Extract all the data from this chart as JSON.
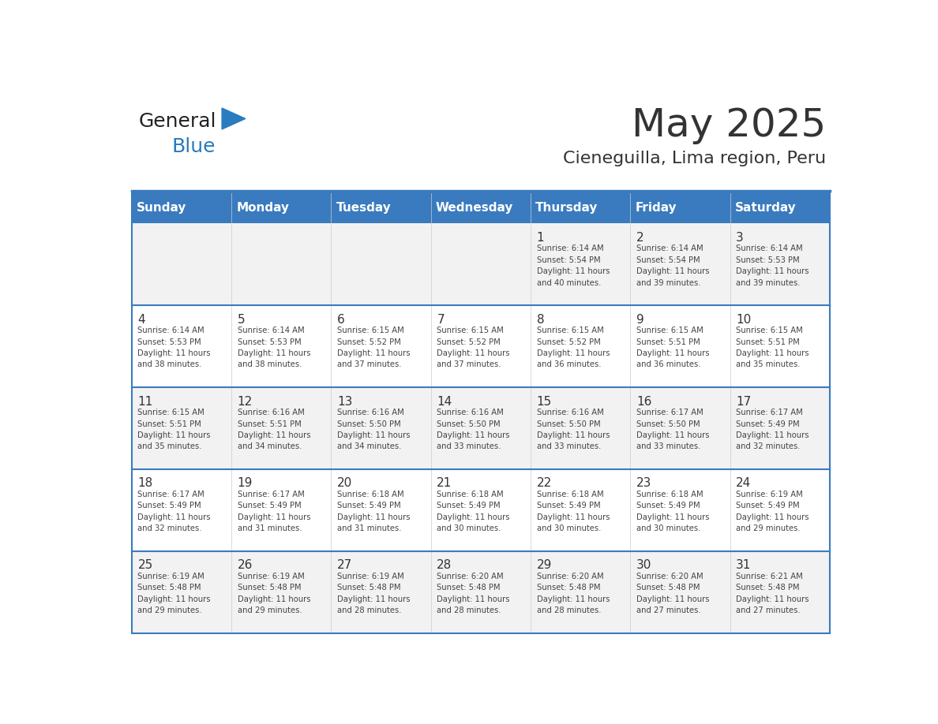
{
  "title": "May 2025",
  "subtitle": "Cieneguilla, Lima region, Peru",
  "days_of_week": [
    "Sunday",
    "Monday",
    "Tuesday",
    "Wednesday",
    "Thursday",
    "Friday",
    "Saturday"
  ],
  "header_bg": "#3a7bbf",
  "header_text": "#ffffff",
  "row_bg_odd": "#f2f2f2",
  "row_bg_even": "#ffffff",
  "divider_color": "#3a7bbf",
  "text_color": "#333333",
  "date_color": "#333333",
  "cell_text_color": "#444444",
  "logo_general_color": "#222222",
  "logo_blue_color": "#2a7bbf",
  "weeks": [
    {
      "days": [
        {
          "day": null,
          "info": null
        },
        {
          "day": null,
          "info": null
        },
        {
          "day": null,
          "info": null
        },
        {
          "day": null,
          "info": null
        },
        {
          "day": 1,
          "info": "Sunrise: 6:14 AM\nSunset: 5:54 PM\nDaylight: 11 hours\nand 40 minutes."
        },
        {
          "day": 2,
          "info": "Sunrise: 6:14 AM\nSunset: 5:54 PM\nDaylight: 11 hours\nand 39 minutes."
        },
        {
          "day": 3,
          "info": "Sunrise: 6:14 AM\nSunset: 5:53 PM\nDaylight: 11 hours\nand 39 minutes."
        }
      ]
    },
    {
      "days": [
        {
          "day": 4,
          "info": "Sunrise: 6:14 AM\nSunset: 5:53 PM\nDaylight: 11 hours\nand 38 minutes."
        },
        {
          "day": 5,
          "info": "Sunrise: 6:14 AM\nSunset: 5:53 PM\nDaylight: 11 hours\nand 38 minutes."
        },
        {
          "day": 6,
          "info": "Sunrise: 6:15 AM\nSunset: 5:52 PM\nDaylight: 11 hours\nand 37 minutes."
        },
        {
          "day": 7,
          "info": "Sunrise: 6:15 AM\nSunset: 5:52 PM\nDaylight: 11 hours\nand 37 minutes."
        },
        {
          "day": 8,
          "info": "Sunrise: 6:15 AM\nSunset: 5:52 PM\nDaylight: 11 hours\nand 36 minutes."
        },
        {
          "day": 9,
          "info": "Sunrise: 6:15 AM\nSunset: 5:51 PM\nDaylight: 11 hours\nand 36 minutes."
        },
        {
          "day": 10,
          "info": "Sunrise: 6:15 AM\nSunset: 5:51 PM\nDaylight: 11 hours\nand 35 minutes."
        }
      ]
    },
    {
      "days": [
        {
          "day": 11,
          "info": "Sunrise: 6:15 AM\nSunset: 5:51 PM\nDaylight: 11 hours\nand 35 minutes."
        },
        {
          "day": 12,
          "info": "Sunrise: 6:16 AM\nSunset: 5:51 PM\nDaylight: 11 hours\nand 34 minutes."
        },
        {
          "day": 13,
          "info": "Sunrise: 6:16 AM\nSunset: 5:50 PM\nDaylight: 11 hours\nand 34 minutes."
        },
        {
          "day": 14,
          "info": "Sunrise: 6:16 AM\nSunset: 5:50 PM\nDaylight: 11 hours\nand 33 minutes."
        },
        {
          "day": 15,
          "info": "Sunrise: 6:16 AM\nSunset: 5:50 PM\nDaylight: 11 hours\nand 33 minutes."
        },
        {
          "day": 16,
          "info": "Sunrise: 6:17 AM\nSunset: 5:50 PM\nDaylight: 11 hours\nand 33 minutes."
        },
        {
          "day": 17,
          "info": "Sunrise: 6:17 AM\nSunset: 5:49 PM\nDaylight: 11 hours\nand 32 minutes."
        }
      ]
    },
    {
      "days": [
        {
          "day": 18,
          "info": "Sunrise: 6:17 AM\nSunset: 5:49 PM\nDaylight: 11 hours\nand 32 minutes."
        },
        {
          "day": 19,
          "info": "Sunrise: 6:17 AM\nSunset: 5:49 PM\nDaylight: 11 hours\nand 31 minutes."
        },
        {
          "day": 20,
          "info": "Sunrise: 6:18 AM\nSunset: 5:49 PM\nDaylight: 11 hours\nand 31 minutes."
        },
        {
          "day": 21,
          "info": "Sunrise: 6:18 AM\nSunset: 5:49 PM\nDaylight: 11 hours\nand 30 minutes."
        },
        {
          "day": 22,
          "info": "Sunrise: 6:18 AM\nSunset: 5:49 PM\nDaylight: 11 hours\nand 30 minutes."
        },
        {
          "day": 23,
          "info": "Sunrise: 6:18 AM\nSunset: 5:49 PM\nDaylight: 11 hours\nand 30 minutes."
        },
        {
          "day": 24,
          "info": "Sunrise: 6:19 AM\nSunset: 5:49 PM\nDaylight: 11 hours\nand 29 minutes."
        }
      ]
    },
    {
      "days": [
        {
          "day": 25,
          "info": "Sunrise: 6:19 AM\nSunset: 5:48 PM\nDaylight: 11 hours\nand 29 minutes."
        },
        {
          "day": 26,
          "info": "Sunrise: 6:19 AM\nSunset: 5:48 PM\nDaylight: 11 hours\nand 29 minutes."
        },
        {
          "day": 27,
          "info": "Sunrise: 6:19 AM\nSunset: 5:48 PM\nDaylight: 11 hours\nand 28 minutes."
        },
        {
          "day": 28,
          "info": "Sunrise: 6:20 AM\nSunset: 5:48 PM\nDaylight: 11 hours\nand 28 minutes."
        },
        {
          "day": 29,
          "info": "Sunrise: 6:20 AM\nSunset: 5:48 PM\nDaylight: 11 hours\nand 28 minutes."
        },
        {
          "day": 30,
          "info": "Sunrise: 6:20 AM\nSunset: 5:48 PM\nDaylight: 11 hours\nand 27 minutes."
        },
        {
          "day": 31,
          "info": "Sunrise: 6:21 AM\nSunset: 5:48 PM\nDaylight: 11 hours\nand 27 minutes."
        }
      ]
    }
  ]
}
